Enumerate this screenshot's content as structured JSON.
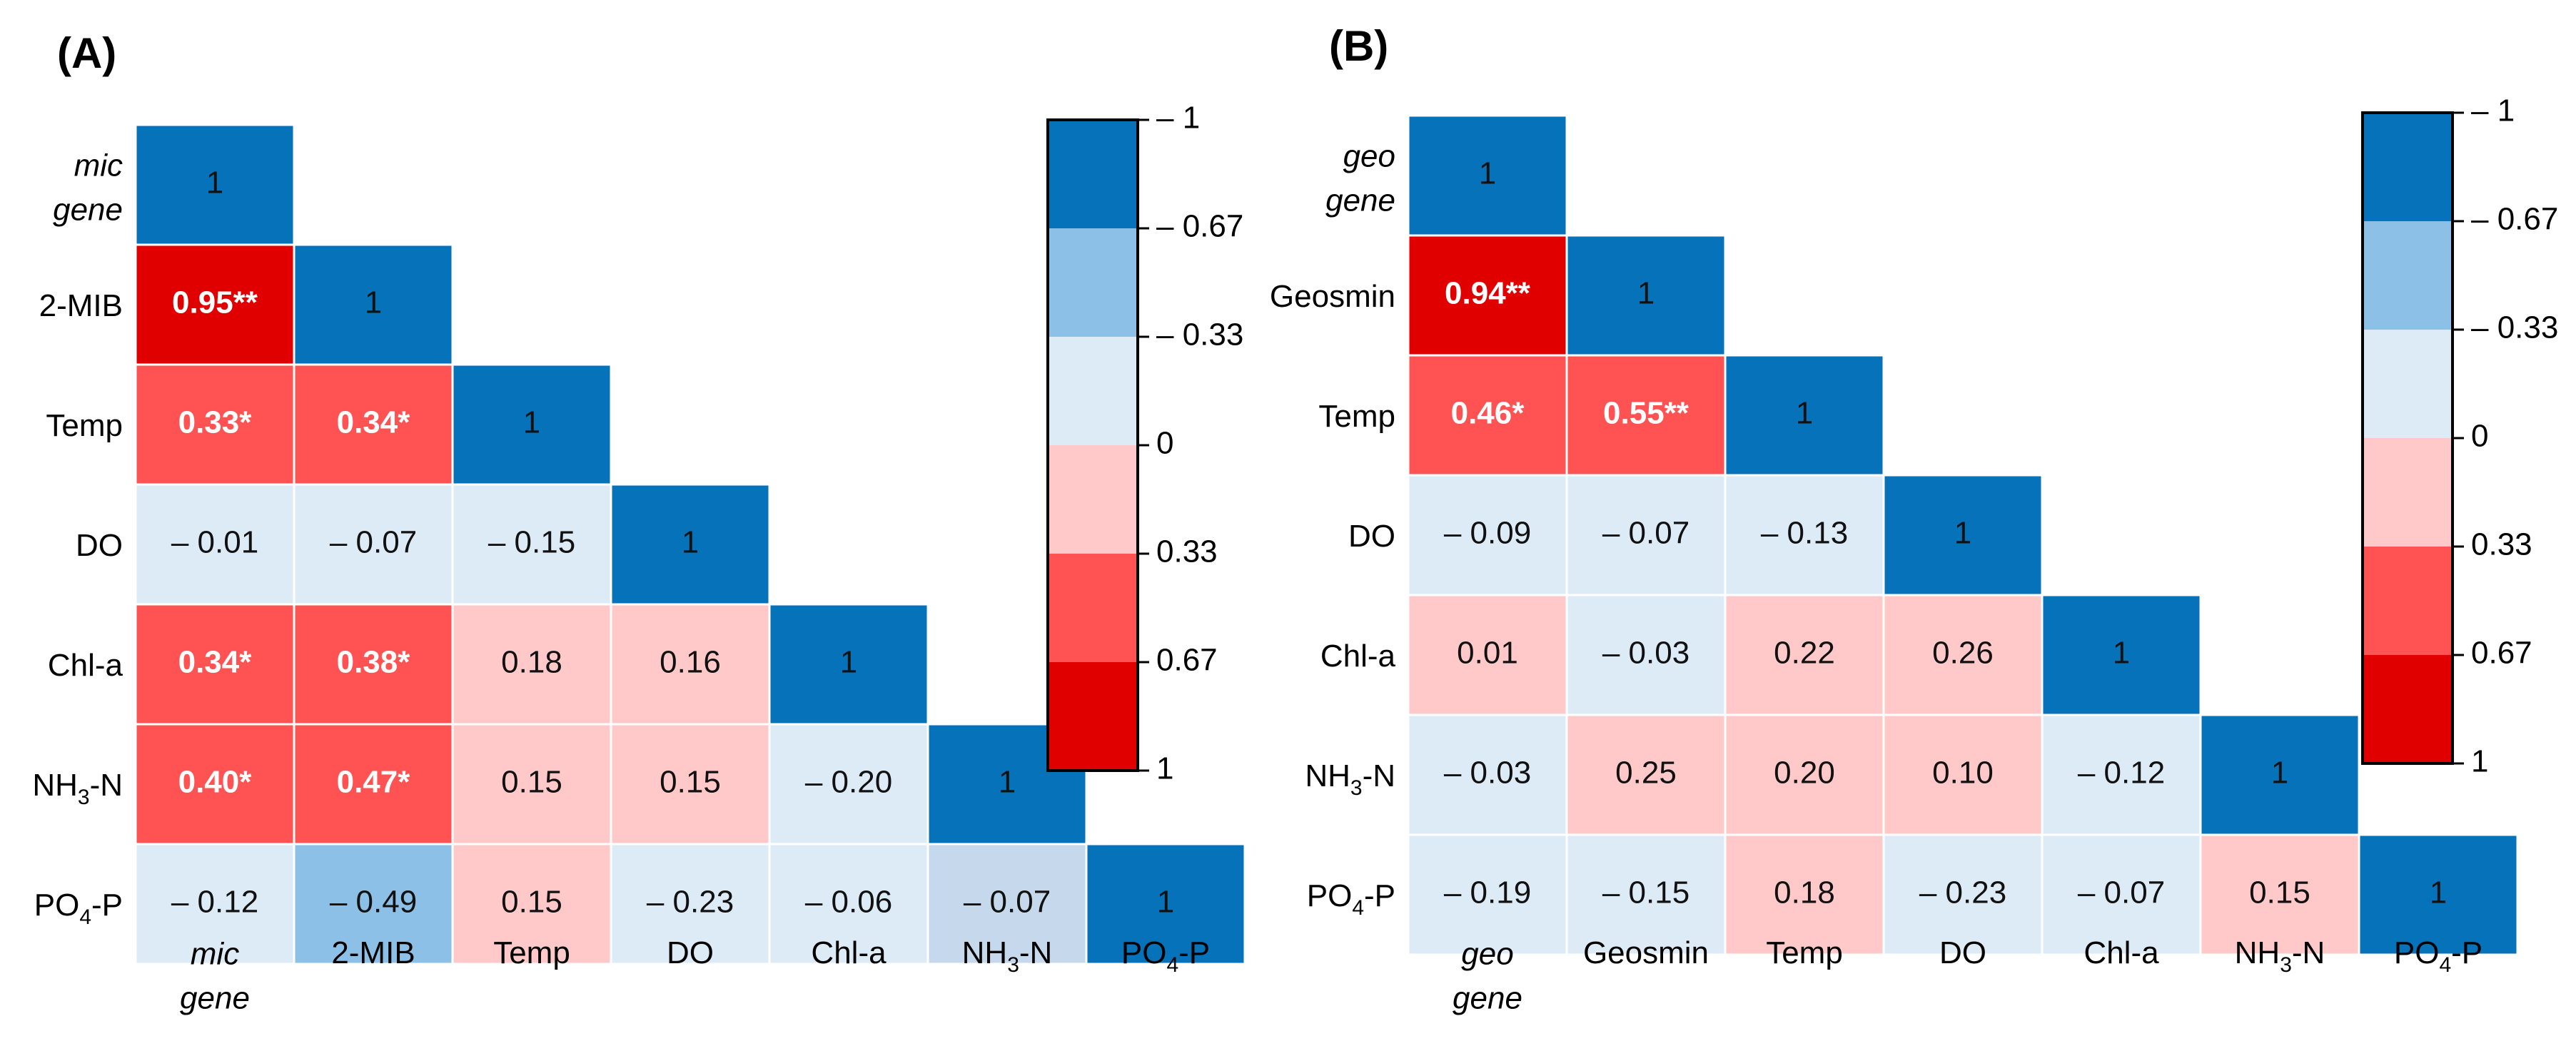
{
  "chart_data": [
    {
      "type": "heatmap",
      "panel_label": "(A)",
      "row_labels": [
        {
          "parts": [
            {
              "t": "mic",
              "style": "italic",
              "line": 0
            },
            {
              "t": "gene",
              "style": "italic",
              "line": 1
            }
          ]
        },
        {
          "parts": [
            {
              "t": "2-MIB"
            }
          ]
        },
        {
          "parts": [
            {
              "t": "Temp"
            }
          ]
        },
        {
          "parts": [
            {
              "t": "DO"
            }
          ]
        },
        {
          "parts": [
            {
              "t": "Chl-a"
            }
          ]
        },
        {
          "parts": [
            {
              "t": "NH"
            },
            {
              "t": "3",
              "style": "sub"
            },
            {
              "t": "-N"
            }
          ]
        },
        {
          "parts": [
            {
              "t": "PO"
            },
            {
              "t": "4",
              "style": "sub"
            },
            {
              "t": "-P"
            }
          ]
        }
      ],
      "col_labels": [
        {
          "parts": [
            {
              "t": "mic",
              "style": "italic",
              "line": 0
            },
            {
              "t": "gene",
              "style": "italic",
              "line": 1
            }
          ]
        },
        {
          "parts": [
            {
              "t": "2-MIB"
            }
          ]
        },
        {
          "parts": [
            {
              "t": "Temp"
            }
          ]
        },
        {
          "parts": [
            {
              "t": "DO"
            }
          ]
        },
        {
          "parts": [
            {
              "t": "Chl-a"
            }
          ]
        },
        {
          "parts": [
            {
              "t": "NH"
            },
            {
              "t": "3",
              "style": "sub"
            },
            {
              "t": "-N"
            }
          ]
        },
        {
          "parts": [
            {
              "t": "PO"
            },
            {
              "t": "4",
              "style": "sub"
            },
            {
              "t": "-P"
            }
          ]
        }
      ],
      "cells": [
        [
          {
            "v": 1,
            "label": "1",
            "color": "#0572BA"
          }
        ],
        [
          {
            "v": 0.95,
            "label": "0.95**",
            "color": "#E00000",
            "bold": true
          },
          {
            "v": 1,
            "label": "1",
            "color": "#0572BA"
          }
        ],
        [
          {
            "v": 0.33,
            "label": "0.33*",
            "color": "#FF5252",
            "bold": true
          },
          {
            "v": 0.34,
            "label": "0.34*",
            "color": "#FF5252",
            "bold": true
          },
          {
            "v": 1,
            "label": "1",
            "color": "#0572BA"
          }
        ],
        [
          {
            "v": -0.01,
            "label": "– 0.01",
            "color": "#DDEBF7"
          },
          {
            "v": -0.07,
            "label": "– 0.07",
            "color": "#DDEBF7"
          },
          {
            "v": -0.15,
            "label": "– 0.15",
            "color": "#DDEBF7"
          },
          {
            "v": 1,
            "label": "1",
            "color": "#0572BA"
          }
        ],
        [
          {
            "v": 0.34,
            "label": "0.34*",
            "color": "#FF5252",
            "bold": true
          },
          {
            "v": 0.38,
            "label": "0.38*",
            "color": "#FF5252",
            "bold": true
          },
          {
            "v": 0.18,
            "label": "0.18",
            "color": "#FFC9C9"
          },
          {
            "v": 0.16,
            "label": "0.16",
            "color": "#FFC9C9"
          },
          {
            "v": 1,
            "label": "1",
            "color": "#0572BA"
          }
        ],
        [
          {
            "v": 0.4,
            "label": "0.40*",
            "color": "#FF5252",
            "bold": true
          },
          {
            "v": 0.47,
            "label": "0.47*",
            "color": "#FF5252",
            "bold": true
          },
          {
            "v": 0.15,
            "label": "0.15",
            "color": "#FFC9C9"
          },
          {
            "v": 0.15,
            "label": "0.15",
            "color": "#FFC9C9"
          },
          {
            "v": -0.2,
            "label": "– 0.20",
            "color": "#DDEBF7"
          },
          {
            "v": 1,
            "label": "1",
            "color": "#0572BA"
          }
        ],
        [
          {
            "v": -0.12,
            "label": "– 0.12",
            "color": "#DDEBF7"
          },
          {
            "v": -0.49,
            "label": "– 0.49",
            "color": "#8DC0E6"
          },
          {
            "v": 0.15,
            "label": "0.15",
            "color": "#FFC9C9"
          },
          {
            "v": -0.23,
            "label": "– 0.23",
            "color": "#DDEBF7"
          },
          {
            "v": -0.06,
            "label": "– 0.06",
            "color": "#DDEBF7"
          },
          {
            "v": -0.07,
            "label": "– 0.07",
            "color": "#C6D9EC"
          },
          {
            "v": 1,
            "label": "1",
            "color": "#0572BA"
          }
        ]
      ],
      "colorbar": {
        "ticks": [
          "– 1",
          "– 0.67",
          "– 0.33",
          "0",
          "0.33",
          "0.67",
          "1"
        ],
        "bands": [
          "#0572BA",
          "#8DC0E6",
          "#DDEBF7",
          "#FFC9C9",
          "#FF5252",
          "#E00000"
        ]
      }
    },
    {
      "type": "heatmap",
      "panel_label": "(B)",
      "row_labels": [
        {
          "parts": [
            {
              "t": "geo",
              "style": "italic",
              "line": 0
            },
            {
              "t": "gene",
              "style": "italic",
              "line": 1
            }
          ]
        },
        {
          "parts": [
            {
              "t": "Geosmin"
            }
          ]
        },
        {
          "parts": [
            {
              "t": "Temp"
            }
          ]
        },
        {
          "parts": [
            {
              "t": "DO"
            }
          ]
        },
        {
          "parts": [
            {
              "t": "Chl-a"
            }
          ]
        },
        {
          "parts": [
            {
              "t": "NH"
            },
            {
              "t": "3",
              "style": "sub"
            },
            {
              "t": "-N"
            }
          ]
        },
        {
          "parts": [
            {
              "t": "PO"
            },
            {
              "t": "4",
              "style": "sub"
            },
            {
              "t": "-P"
            }
          ]
        }
      ],
      "col_labels": [
        {
          "parts": [
            {
              "t": "geo",
              "style": "italic",
              "line": 0
            },
            {
              "t": "gene",
              "style": "italic",
              "line": 1
            }
          ]
        },
        {
          "parts": [
            {
              "t": "Geosmin"
            }
          ]
        },
        {
          "parts": [
            {
              "t": "Temp"
            }
          ]
        },
        {
          "parts": [
            {
              "t": "DO"
            }
          ]
        },
        {
          "parts": [
            {
              "t": "Chl-a"
            }
          ]
        },
        {
          "parts": [
            {
              "t": "NH"
            },
            {
              "t": "3",
              "style": "sub"
            },
            {
              "t": "-N"
            }
          ]
        },
        {
          "parts": [
            {
              "t": "PO"
            },
            {
              "t": "4",
              "style": "sub"
            },
            {
              "t": "-P"
            }
          ]
        }
      ],
      "cells": [
        [
          {
            "v": 1,
            "label": "1",
            "color": "#0572BA"
          }
        ],
        [
          {
            "v": 0.94,
            "label": "0.94**",
            "color": "#E00000",
            "bold": true
          },
          {
            "v": 1,
            "label": "1",
            "color": "#0572BA"
          }
        ],
        [
          {
            "v": 0.46,
            "label": "0.46*",
            "color": "#FF5252",
            "bold": true
          },
          {
            "v": 0.55,
            "label": "0.55**",
            "color": "#FF5252",
            "bold": true
          },
          {
            "v": 1,
            "label": "1",
            "color": "#0572BA"
          }
        ],
        [
          {
            "v": -0.09,
            "label": "– 0.09",
            "color": "#DDEBF7"
          },
          {
            "v": -0.07,
            "label": "– 0.07",
            "color": "#DDEBF7"
          },
          {
            "v": -0.13,
            "label": "– 0.13",
            "color": "#DDEBF7"
          },
          {
            "v": 1,
            "label": "1",
            "color": "#0572BA"
          }
        ],
        [
          {
            "v": 0.01,
            "label": "0.01",
            "color": "#FFC9C9"
          },
          {
            "v": -0.03,
            "label": "– 0.03",
            "color": "#DDEBF7"
          },
          {
            "v": 0.22,
            "label": "0.22",
            "color": "#FFC9C9"
          },
          {
            "v": 0.26,
            "label": "0.26",
            "color": "#FFC9C9"
          },
          {
            "v": 1,
            "label": "1",
            "color": "#0572BA"
          }
        ],
        [
          {
            "v": -0.03,
            "label": "– 0.03",
            "color": "#DDEBF7"
          },
          {
            "v": 0.25,
            "label": "0.25",
            "color": "#FFC9C9"
          },
          {
            "v": 0.2,
            "label": "0.20",
            "color": "#FFC9C9"
          },
          {
            "v": 0.1,
            "label": "0.10",
            "color": "#FFC9C9"
          },
          {
            "v": -0.12,
            "label": "– 0.12",
            "color": "#DDEBF7"
          },
          {
            "v": 1,
            "label": "1",
            "color": "#0572BA"
          }
        ],
        [
          {
            "v": -0.19,
            "label": "– 0.19",
            "color": "#DDEBF7"
          },
          {
            "v": -0.15,
            "label": "– 0.15",
            "color": "#DDEBF7"
          },
          {
            "v": 0.18,
            "label": "0.18",
            "color": "#FFC9C9"
          },
          {
            "v": -0.23,
            "label": "– 0.23",
            "color": "#DDEBF7"
          },
          {
            "v": -0.07,
            "label": "– 0.07",
            "color": "#DDEBF7"
          },
          {
            "v": 0.15,
            "label": "0.15",
            "color": "#FFC9C9"
          },
          {
            "v": 1,
            "label": "1",
            "color": "#0572BA"
          }
        ]
      ],
      "colorbar": {
        "ticks": [
          "– 1",
          "– 0.67",
          "– 0.33",
          "0",
          "0.33",
          "0.67",
          "1"
        ],
        "bands": [
          "#0572BA",
          "#8DC0E6",
          "#DDEBF7",
          "#FFC9C9",
          "#FF5252",
          "#E00000"
        ]
      }
    }
  ]
}
